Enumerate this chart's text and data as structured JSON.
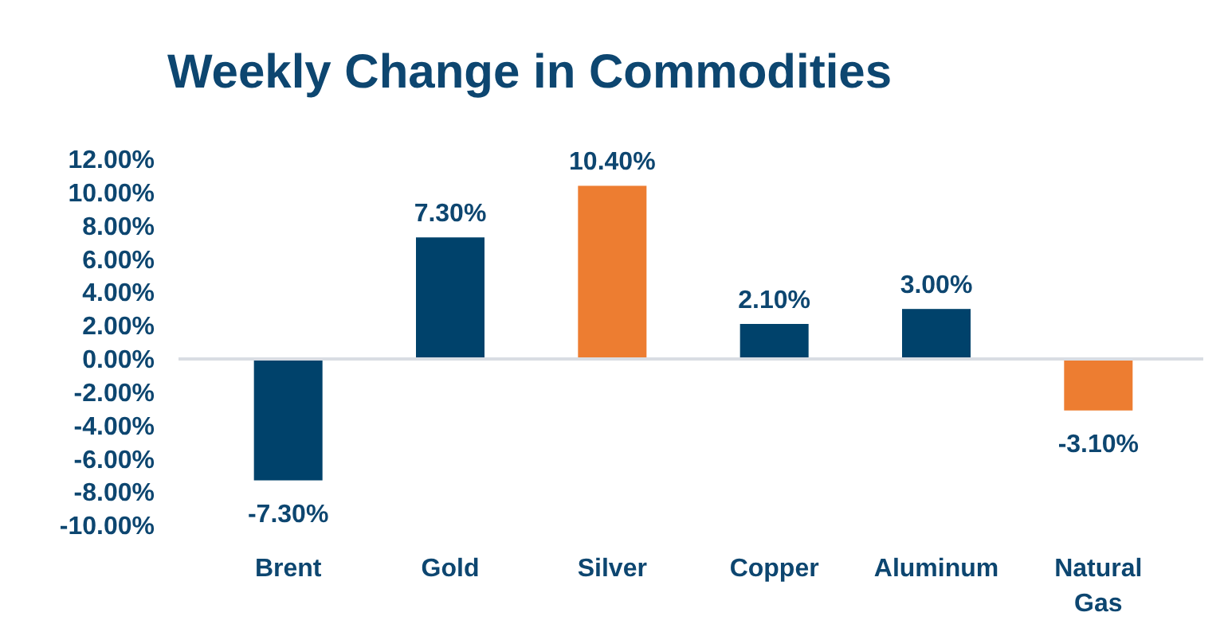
{
  "chart_data": {
    "type": "bar",
    "title": "Weekly Change in Commodities",
    "categories": [
      "Brent",
      "Gold",
      "Silver",
      "Copper",
      "Aluminum",
      "Natural Gas"
    ],
    "values": [
      -7.3,
      7.3,
      10.4,
      2.1,
      3.0,
      -3.1
    ],
    "colors": [
      "#00426b",
      "#00426b",
      "#ed7d31",
      "#00426b",
      "#00426b",
      "#ed7d31"
    ],
    "value_labels": [
      "-7.30%",
      "7.30%",
      "10.40%",
      "2.10%",
      "3.00%",
      "-3.10%"
    ],
    "ylim": [
      -10,
      12
    ],
    "yticks": [
      {
        "value": 12,
        "label": "12.00%"
      },
      {
        "value": 10,
        "label": "10.00%"
      },
      {
        "value": 8,
        "label": "8.00%"
      },
      {
        "value": 6,
        "label": "6.00%"
      },
      {
        "value": 4,
        "label": "4.00%"
      },
      {
        "value": 2,
        "label": "2.00%"
      },
      {
        "value": 0,
        "label": "0.00%"
      },
      {
        "value": -2,
        "label": "-2.00%"
      },
      {
        "value": -4,
        "label": "-4.00%"
      },
      {
        "value": -6,
        "label": "-6.00%"
      },
      {
        "value": -8,
        "label": "-8.00%"
      },
      {
        "value": -10,
        "label": "-10.00%"
      }
    ]
  }
}
